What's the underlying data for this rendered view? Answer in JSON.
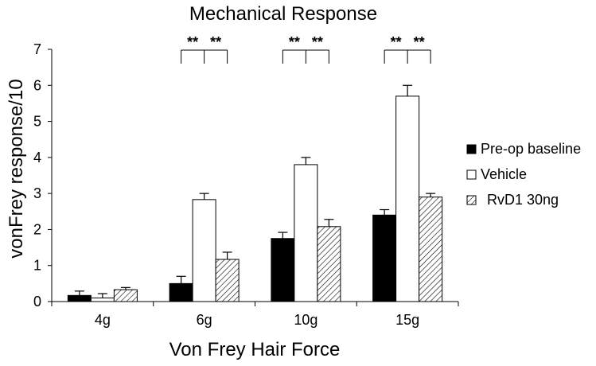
{
  "chart_data": {
    "type": "bar",
    "title": "Mechanical Response",
    "xlabel": "Von Frey Hair Force",
    "ylabel": "vonFrey response/10",
    "categories": [
      "4g",
      "6g",
      "10g",
      "15g"
    ],
    "ylim": [
      0,
      7
    ],
    "yticks": [
      "0",
      "1",
      "2",
      "3",
      "4",
      "5",
      "6",
      "7"
    ],
    "grid": false,
    "legend_position": "right",
    "series": [
      {
        "name": "Pre-op baseline",
        "values": [
          0.17,
          0.5,
          1.75,
          2.4
        ],
        "errors": [
          0.12,
          0.2,
          0.17,
          0.15
        ],
        "fill": "solid",
        "color": "#000000"
      },
      {
        "name": "Vehicle",
        "values": [
          0.1,
          2.83,
          3.8,
          5.7
        ],
        "errors": [
          0.12,
          0.17,
          0.2,
          0.3
        ],
        "fill": "open",
        "color": "#ffffff"
      },
      {
        "name": "RvD1 30ng",
        "values": [
          0.33,
          1.17,
          2.08,
          2.9
        ],
        "errors": [
          0.06,
          0.2,
          0.2,
          0.1
        ],
        "fill": "hatched",
        "color": "#ffffff"
      }
    ],
    "annotations": [
      {
        "category": "6g",
        "labels": [
          "**",
          "**"
        ]
      },
      {
        "category": "10g",
        "labels": [
          "**",
          "**"
        ]
      },
      {
        "category": "15g",
        "labels": [
          "**",
          "**"
        ]
      }
    ]
  }
}
